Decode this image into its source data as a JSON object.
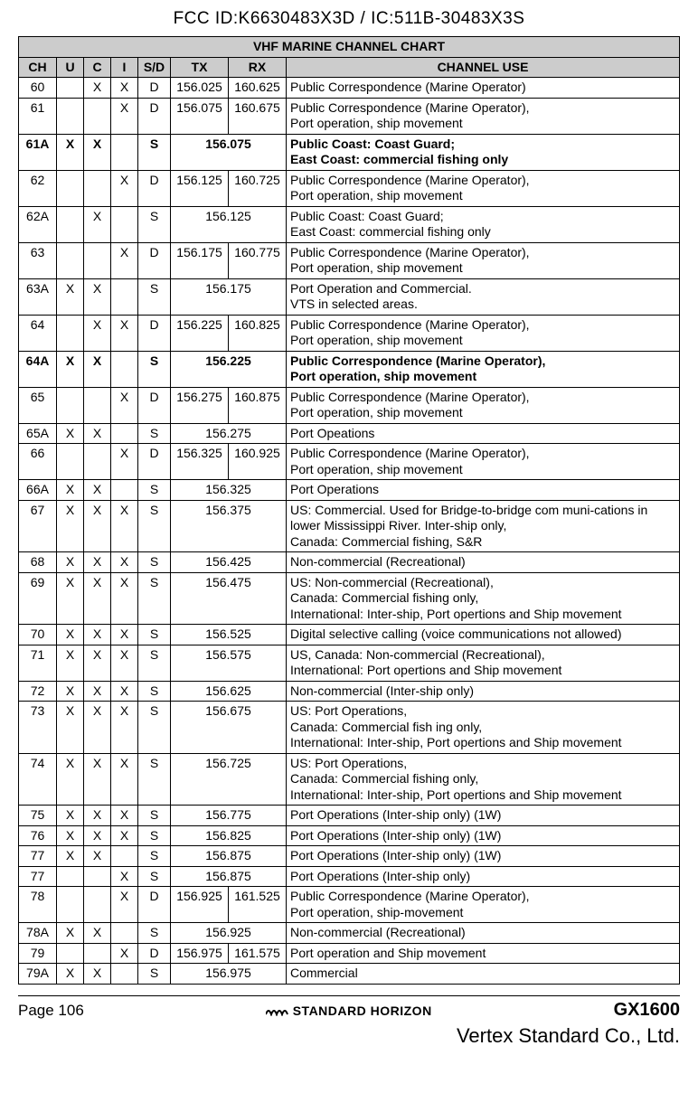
{
  "header": "FCC ID:K6630483X3D / IC:511B-30483X3S",
  "table": {
    "title": "VHF MARINE CHANNEL CHART",
    "columns": [
      "CH",
      "U",
      "C",
      "I",
      "S/D",
      "TX",
      "RX",
      "CHANNEL USE"
    ],
    "rows": [
      {
        "ch": "60",
        "u": "",
        "c": "X",
        "i": "X",
        "sd": "D",
        "tx": "156.025",
        "rx": "160.625",
        "use": "Public Correspondence (Marine Operator)",
        "bold": false
      },
      {
        "ch": "61",
        "u": "",
        "c": "",
        "i": "X",
        "sd": "D",
        "tx": "156.075",
        "rx": "160.675",
        "use": "Public Correspondence (Marine Operator),\nPort operation, ship movement",
        "bold": false
      },
      {
        "ch": "61A",
        "u": "X",
        "c": "X",
        "i": "",
        "sd": "S",
        "tx": "156.075",
        "rx": "",
        "span": true,
        "use": "Public Coast: Coast Guard;\nEast Coast: commercial fishing only",
        "bold": true
      },
      {
        "ch": "62",
        "u": "",
        "c": "",
        "i": "X",
        "sd": "D",
        "tx": "156.125",
        "rx": "160.725",
        "use": "Public Correspondence (Marine Operator),\nPort operation, ship movement",
        "bold": false
      },
      {
        "ch": "62A",
        "u": "",
        "c": "X",
        "i": "",
        "sd": "S",
        "tx": "156.125",
        "rx": "",
        "span": true,
        "use": "Public Coast: Coast Guard;\nEast Coast: commercial fishing only",
        "bold": false
      },
      {
        "ch": "63",
        "u": "",
        "c": "",
        "i": "X",
        "sd": "D",
        "tx": "156.175",
        "rx": "160.775",
        "use": "Public Correspondence (Marine Operator),\nPort operation, ship movement",
        "bold": false
      },
      {
        "ch": "63A",
        "u": "X",
        "c": "X",
        "i": "",
        "sd": "S",
        "tx": "156.175",
        "rx": "",
        "span": true,
        "use": "Port Operation and Commercial.\nVTS in selected areas.",
        "bold": false
      },
      {
        "ch": "64",
        "u": "",
        "c": "X",
        "i": "X",
        "sd": "D",
        "tx": "156.225",
        "rx": "160.825",
        "use": "Public Correspondence (Marine Operator),\nPort operation, ship movement",
        "bold": false
      },
      {
        "ch": "64A",
        "u": "X",
        "c": "X",
        "i": "",
        "sd": "S",
        "tx": "156.225",
        "rx": "",
        "span": true,
        "use": "Public Correspondence (Marine Operator),\nPort operation, ship movement",
        "bold": true
      },
      {
        "ch": "65",
        "u": "",
        "c": "",
        "i": "X",
        "sd": "D",
        "tx": "156.275",
        "rx": "160.875",
        "use": "Public Correspondence (Marine Operator),\nPort operation, ship movement",
        "bold": false
      },
      {
        "ch": "65A",
        "u": "X",
        "c": "X",
        "i": "",
        "sd": "S",
        "tx": "156.275",
        "rx": "",
        "span": true,
        "use": "Port Opeations",
        "bold": false
      },
      {
        "ch": "66",
        "u": "",
        "c": "",
        "i": "X",
        "sd": "D",
        "tx": "156.325",
        "rx": "160.925",
        "use": "Public Correspondence (Marine Operator),\nPort operation, ship movement",
        "bold": false
      },
      {
        "ch": "66A",
        "u": "X",
        "c": "X",
        "i": "",
        "sd": "S",
        "tx": "156.325",
        "rx": "",
        "span": true,
        "use": "Port Operations",
        "bold": false
      },
      {
        "ch": "67",
        "u": "X",
        "c": "X",
        "i": "X",
        "sd": "S",
        "tx": "156.375",
        "rx": "",
        "span": true,
        "use": "US: Commercial. Used for Bridge-to-bridge com muni-cations in lower Mississippi River. Inter-ship only,\nCanada: Commercial fishing, S&R",
        "bold": false
      },
      {
        "ch": "68",
        "u": "X",
        "c": "X",
        "i": "X",
        "sd": "S",
        "tx": "156.425",
        "rx": "",
        "span": true,
        "use": "Non-commercial (Recreational)",
        "bold": false
      },
      {
        "ch": "69",
        "u": "X",
        "c": "X",
        "i": "X",
        "sd": "S",
        "tx": "156.475",
        "rx": "",
        "span": true,
        "use": "US: Non-commercial (Recreational),\nCanada: Commercial fishing only,\nInternational: Inter-ship, Port opertions and Ship movement",
        "bold": false
      },
      {
        "ch": "70",
        "u": "X",
        "c": "X",
        "i": "X",
        "sd": "S",
        "tx": "156.525",
        "rx": "",
        "span": true,
        "use": "Digital selective calling (voice communications not allowed)",
        "bold": false
      },
      {
        "ch": "71",
        "u": "X",
        "c": "X",
        "i": "X",
        "sd": "S",
        "tx": "156.575",
        "rx": "",
        "span": true,
        "use": "US, Canada: Non-commercial (Recreational),\nInternational: Port opertions and Ship movement",
        "bold": false
      },
      {
        "ch": "72",
        "u": "X",
        "c": "X",
        "i": "X",
        "sd": "S",
        "tx": "156.625",
        "rx": "",
        "span": true,
        "use": "Non-commercial (Inter-ship only)",
        "bold": false
      },
      {
        "ch": "73",
        "u": "X",
        "c": "X",
        "i": "X",
        "sd": "S",
        "tx": "156.675",
        "rx": "",
        "span": true,
        "use": "US: Port Operations,\nCanada: Commercial fish ing only,\nInternational: Inter-ship, Port opertions and Ship movement",
        "bold": false
      },
      {
        "ch": "74",
        "u": "X",
        "c": "X",
        "i": "X",
        "sd": "S",
        "tx": "156.725",
        "rx": "",
        "span": true,
        "use": "US: Port Operations,\nCanada: Commercial fishing only,\nInternational: Inter-ship, Port opertions and Ship movement",
        "bold": false
      },
      {
        "ch": "75",
        "u": "X",
        "c": "X",
        "i": "X",
        "sd": "S",
        "tx": "156.775",
        "rx": "",
        "span": true,
        "use": "Port Operations (Inter-ship only) (1W)",
        "bold": false
      },
      {
        "ch": "76",
        "u": "X",
        "c": "X",
        "i": "X",
        "sd": "S",
        "tx": "156.825",
        "rx": "",
        "span": true,
        "use": "Port Operations (Inter-ship only) (1W)",
        "bold": false
      },
      {
        "ch": "77",
        "u": "X",
        "c": "X",
        "i": "",
        "sd": "S",
        "tx": "156.875",
        "rx": "",
        "span": true,
        "use": "Port Operations (Inter-ship only) (1W)",
        "bold": false
      },
      {
        "ch": "77",
        "u": "",
        "c": "",
        "i": "X",
        "sd": "S",
        "tx": "156.875",
        "rx": "",
        "span": true,
        "use": "Port Operations (Inter-ship only)",
        "bold": false
      },
      {
        "ch": "78",
        "u": "",
        "c": "",
        "i": "X",
        "sd": "D",
        "tx": "156.925",
        "rx": "161.525",
        "use": "Public Correspondence (Marine Operator),\nPort operation, ship-movement",
        "bold": false
      },
      {
        "ch": "78A",
        "u": "X",
        "c": "X",
        "i": "",
        "sd": "S",
        "tx": "156.925",
        "rx": "",
        "span": true,
        "use": "Non-commercial (Recreational)",
        "bold": false
      },
      {
        "ch": "79",
        "u": "",
        "c": "",
        "i": "X",
        "sd": "D",
        "tx": "156.975",
        "rx": "161.575",
        "use": "Port operation and Ship movement",
        "bold": false
      },
      {
        "ch": "79A",
        "u": "X",
        "c": "X",
        "i": "",
        "sd": "S",
        "tx": "156.975",
        "rx": "",
        "span": true,
        "use": "Commercial",
        "bold": false
      }
    ]
  },
  "footer": {
    "page": "Page 106",
    "brand": "STANDARD HORIZON",
    "model": "GX1600",
    "company": "Vertex Standard Co., Ltd."
  },
  "colors": {
    "header_bg": "#cccccc",
    "border": "#000000",
    "text": "#000000",
    "background": "#ffffff"
  }
}
